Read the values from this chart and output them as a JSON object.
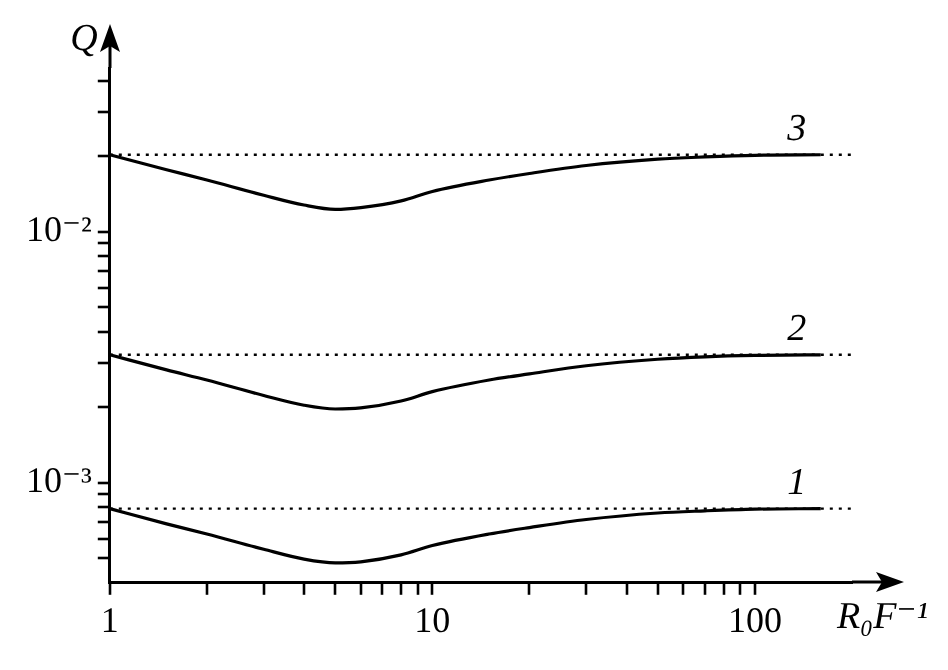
{
  "chart_data": {
    "type": "line",
    "xlabel": "R₀F⁻¹",
    "ylabel": "Q",
    "log": "xy",
    "legend": false,
    "marker": "none",
    "line_style": "solid",
    "xlim": [
      1,
      200
    ],
    "xticks": [
      1,
      {
        "value": 2,
        "label": null
      },
      {
        "value": 3,
        "label": null
      },
      {
        "value": 4,
        "label": null
      },
      {
        "value": 5,
        "label": null
      },
      {
        "value": 6,
        "label": null
      },
      {
        "value": 7,
        "label": null
      },
      {
        "value": 8,
        "label": null
      },
      {
        "value": 9,
        "label": null
      },
      10,
      {
        "value": 20,
        "label": null
      },
      {
        "value": 30,
        "label": null
      },
      {
        "value": 40,
        "label": null
      },
      {
        "value": 50,
        "label": null
      },
      {
        "value": 60,
        "label": null
      },
      {
        "value": 70,
        "label": null
      },
      {
        "value": 80,
        "label": null
      },
      {
        "value": 90,
        "label": null
      },
      100
    ],
    "ylim": [
      0.0004,
      0.045
    ],
    "yticks": [
      {
        "value": 0.0005,
        "label": null
      },
      {
        "value": 0.0006,
        "label": null
      },
      {
        "value": 0.0007,
        "label": null
      },
      {
        "value": 0.0008,
        "label": null
      },
      {
        "value": 0.0009,
        "label": null
      },
      {
        "value": 0.001,
        "label": "10⁻³"
      },
      {
        "value": 0.002,
        "label": null
      },
      {
        "value": 0.003,
        "label": null
      },
      {
        "value": 0.004,
        "label": null
      },
      {
        "value": 0.005,
        "label": null
      },
      {
        "value": 0.006,
        "label": null
      },
      {
        "value": 0.007,
        "label": null
      },
      {
        "value": 0.008,
        "label": null
      },
      {
        "value": 0.009,
        "label": null
      },
      {
        "value": 0.01,
        "label": "10⁻²"
      },
      {
        "value": 0.02,
        "label": null
      },
      {
        "value": 0.03,
        "label": null
      },
      {
        "value": 0.04,
        "label": null
      }
    ],
    "x": [
      1,
      1.5,
      2,
      3,
      4,
      5,
      6,
      8,
      10,
      15,
      20,
      30,
      50,
      70,
      100,
      160
    ],
    "series": [
      {
        "name": "1",
        "color": "#000000",
        "values": [
          0.00079,
          0.000687,
          0.000626,
          0.000544,
          0.000497,
          0.00048,
          0.000485,
          0.000517,
          0.000563,
          0.000626,
          0.000664,
          0.000715,
          0.000759,
          0.000774,
          0.000786,
          0.00079
        ]
      },
      {
        "name": "2",
        "color": "#000000",
        "values": [
          0.00324,
          0.00282,
          0.00257,
          0.00223,
          0.00204,
          0.00197,
          0.00199,
          0.00212,
          0.00231,
          0.00257,
          0.00272,
          0.00293,
          0.00311,
          0.00318,
          0.00322,
          0.00324
        ]
      },
      {
        "name": "3",
        "color": "#000000",
        "values": [
          0.0203,
          0.0177,
          0.0161,
          0.014,
          0.0128,
          0.0123,
          0.0125,
          0.0133,
          0.0145,
          0.0161,
          0.0171,
          0.0184,
          0.0195,
          0.0199,
          0.0202,
          0.0203
        ]
      }
    ],
    "ref_lines": [
      {
        "axis": "y",
        "value": 0.00079,
        "line_style": "dotted",
        "color": "#000000"
      },
      {
        "axis": "y",
        "value": 0.00324,
        "line_style": "dotted",
        "color": "#000000"
      },
      {
        "axis": "y",
        "value": 0.0203,
        "line_style": "dotted",
        "color": "#000000"
      }
    ]
  }
}
